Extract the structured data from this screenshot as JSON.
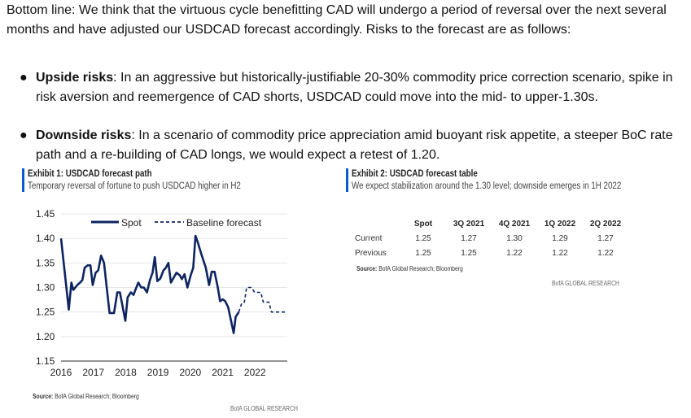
{
  "intro": "Bottom line: We think that the virtuous cycle benefitting CAD will undergo a period of reversal over the next several months and have adjusted our USDCAD forecast accordingly. Risks to the forecast are as follows:",
  "bullets": [
    {
      "title": "Upside risks",
      "text": ": In an aggressive but historically-justifiable 20-30% commodity price correction scenario, spike in risk aversion and reemergence of CAD shorts, USDCAD could move into the mid- to upper-1.30s."
    },
    {
      "title": "Downside risks",
      "text": ": In a scenario of commodity price appreciation amid buoyant risk appetite, a steeper BoC rate path and a re-building of CAD longs, we would expect a retest of 1.20."
    }
  ],
  "exhibit1": {
    "title": "Exhibit 1: USDCAD forecast path",
    "subtitle": "Temporary reversal of fortune to push USDCAD higher in H2",
    "source_label": "Source:",
    "source": " BofA Global Research; Bloomberg",
    "brand": "BofA GLOBAL RESEARCH"
  },
  "exhibit2": {
    "title": "Exhibit 2: USDCAD forecast table",
    "subtitle": "We expect stabilization around the 1.30 level; downside emerges in 1H 2022",
    "columns": [
      "",
      "Spot",
      "3Q 2021",
      "4Q 2021",
      "1Q 2022",
      "2Q 2022"
    ],
    "rows": [
      {
        "label": "Current",
        "values": [
          "1.25",
          "1.27",
          "1.30",
          "1.29",
          "1.27"
        ]
      },
      {
        "label": "Previous",
        "values": [
          "1.25",
          "1.25",
          "1.22",
          "1.22",
          "1.22"
        ]
      }
    ],
    "source_label": "Source:",
    "source": " BofA Global Research; Bloomberg",
    "brand": "BofA GLOBAL RESEARCH"
  },
  "colors": {
    "series": "#0d2461",
    "accent": "#0a5bd3"
  },
  "chart_data": {
    "type": "line",
    "title": "Exhibit 1: USDCAD forecast path",
    "xlabel": "",
    "ylabel": "",
    "xlim": [
      2016,
      2023
    ],
    "ylim": [
      1.15,
      1.45
    ],
    "yticks": [
      "1.45",
      "1.40",
      "1.35",
      "1.30",
      "1.25",
      "1.20",
      "1.15"
    ],
    "xticks": [
      "2016",
      "2017",
      "2018",
      "2019",
      "2020",
      "2021",
      "2022"
    ],
    "grid": true,
    "legend_position": "top",
    "series": [
      {
        "name": "Spot",
        "style": "solid",
        "x": [
          2016.0,
          2016.24,
          2016.32,
          2016.38,
          2016.5,
          2016.59,
          2016.66,
          2016.73,
          2016.82,
          2016.91,
          2016.98,
          2017.07,
          2017.15,
          2017.24,
          2017.33,
          2017.5,
          2017.64,
          2017.74,
          2017.82,
          2017.99,
          2018.06,
          2018.16,
          2018.24,
          2018.39,
          2018.48,
          2018.56,
          2018.66,
          2018.75,
          2018.83,
          2018.9,
          2018.98,
          2019.07,
          2019.17,
          2019.24,
          2019.32,
          2019.4,
          2019.57,
          2019.67,
          2019.74,
          2019.82,
          2019.91,
          2020.01,
          2020.09,
          2020.16,
          2020.24,
          2020.33,
          2020.48,
          2020.58,
          2020.66,
          2020.75,
          2020.85,
          2020.92,
          2021.0,
          2021.08,
          2021.17,
          2021.34,
          2021.4,
          2021.5
        ],
        "y": [
          1.4,
          1.255,
          1.31,
          1.295,
          1.305,
          1.31,
          1.315,
          1.34,
          1.345,
          1.345,
          1.305,
          1.33,
          1.335,
          1.365,
          1.35,
          1.248,
          1.248,
          1.29,
          1.29,
          1.232,
          1.28,
          1.29,
          1.285,
          1.31,
          1.3,
          1.3,
          1.29,
          1.315,
          1.33,
          1.362,
          1.313,
          1.318,
          1.335,
          1.34,
          1.35,
          1.31,
          1.33,
          1.325,
          1.317,
          1.327,
          1.3,
          1.325,
          1.34,
          1.405,
          1.39,
          1.37,
          1.34,
          1.305,
          1.332,
          1.332,
          1.3,
          1.272,
          1.276,
          1.272,
          1.26,
          1.207,
          1.24,
          1.25
        ]
      },
      {
        "name": "Baseline forecast",
        "style": "dashed",
        "x": [
          2021.5,
          2021.59,
          2021.67,
          2021.74,
          2021.88,
          2021.99,
          2022.18,
          2022.26,
          2022.43,
          2022.51,
          2022.93
        ],
        "y": [
          1.25,
          1.268,
          1.27,
          1.3,
          1.3,
          1.29,
          1.29,
          1.27,
          1.27,
          1.25,
          1.25
        ]
      }
    ]
  }
}
